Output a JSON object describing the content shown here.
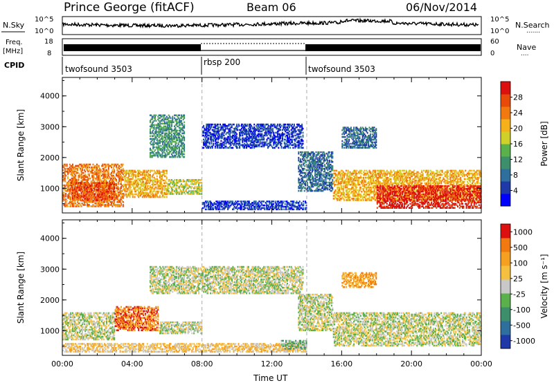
{
  "header": {
    "station": "Prince George (fitACF)",
    "beam": "Beam 06",
    "date": "06/Nov/2014"
  },
  "nsky_panel": {
    "left_label": "N.Sky",
    "right_label": "N.Search",
    "tick_top": "10^5",
    "tick_bottom": "10^0",
    "right_tick_top": "10^5",
    "right_tick_bottom": "10^0",
    "legend_right": "......."
  },
  "freq_panel": {
    "left_label_line1": "Freq.",
    "left_label_line2": "[MHz]",
    "left_ticks": [
      "18",
      "8"
    ],
    "right_label": "Nave",
    "right_ticks": [
      "60",
      "0"
    ],
    "legend_right": "...."
  },
  "cpid": {
    "label": "CPID",
    "segments": [
      {
        "name": "twofsound 3503",
        "start_h": 0,
        "end_h": 8
      },
      {
        "name": "rbsp 200",
        "start_h": 8,
        "end_h": 14
      },
      {
        "name": "twofsound 3503",
        "start_h": 14,
        "end_h": 24
      }
    ]
  },
  "chart_data": [
    {
      "type": "heatmap",
      "quantity": "Power",
      "ylabel": "Slant Range [km]",
      "yticks": [
        1000,
        2000,
        3000,
        4000
      ],
      "ylim": [
        200,
        4600
      ],
      "xlim": [
        0,
        24
      ],
      "colorbar": {
        "label": "Power [dB]",
        "ticks": [
          "4",
          "8",
          "12",
          "16",
          "20",
          "24",
          "28"
        ],
        "colors": [
          "#0000ff",
          "#1f3aa8",
          "#2e6f9e",
          "#3c8f6a",
          "#5ab04a",
          "#cfd02a",
          "#f5b01a",
          "#f07a10",
          "#e84a0a",
          "#dd1010"
        ]
      },
      "regions": [
        {
          "t0": 0.0,
          "t1": 3.5,
          "r0": 400,
          "r1": 1800,
          "level": 7
        },
        {
          "t0": 0.5,
          "t1": 3.0,
          "r0": 600,
          "r1": 1200,
          "level": 8
        },
        {
          "t0": 3.5,
          "t1": 6.0,
          "r0": 700,
          "r1": 1600,
          "level": 6
        },
        {
          "t0": 6.0,
          "t1": 8.0,
          "r0": 800,
          "r1": 1300,
          "level": 5
        },
        {
          "t0": 5.0,
          "t1": 7.0,
          "r0": 2000,
          "r1": 3400,
          "level": 3
        },
        {
          "t0": 8.0,
          "t1": 13.8,
          "r0": 2300,
          "r1": 3100,
          "level": 1
        },
        {
          "t0": 13.5,
          "t1": 15.5,
          "r0": 900,
          "r1": 2200,
          "level": 2
        },
        {
          "t0": 15.5,
          "t1": 24.0,
          "r0": 600,
          "r1": 1600,
          "level": 6
        },
        {
          "t0": 18.0,
          "t1": 24.0,
          "r0": 350,
          "r1": 1100,
          "level": 9
        },
        {
          "t0": 16.0,
          "t1": 18.0,
          "r0": 2300,
          "r1": 3000,
          "level": 2
        },
        {
          "t0": 8.0,
          "t1": 14.0,
          "r0": 300,
          "r1": 600,
          "level": 1
        }
      ]
    },
    {
      "type": "heatmap",
      "quantity": "Velocity",
      "ylabel": "Slant Range [km]",
      "xlabel": "Time UT",
      "yticks": [
        1000,
        2000,
        3000,
        4000
      ],
      "ylim": [
        200,
        4600
      ],
      "xlim": [
        0,
        24
      ],
      "xticks": [
        "00:00",
        "04:00",
        "08:00",
        "12:00",
        "16:00",
        "20:00",
        "00:00"
      ],
      "colorbar": {
        "label": "Velocity [m s⁻¹]",
        "ticks": [
          "1000",
          "500",
          "100",
          "25",
          "-25",
          "-100",
          "-500",
          "-1000"
        ],
        "colors": [
          "#1f3aa8",
          "#2e6f9e",
          "#3c8f6a",
          "#5ab04a",
          "#c8c8c8",
          "#f5c040",
          "#f5a020",
          "#f07a10",
          "#dd1010"
        ]
      },
      "regions": [
        {
          "t0": 0.0,
          "t1": 3.0,
          "r0": 700,
          "r1": 1600,
          "level": 4
        },
        {
          "t0": 3.0,
          "t1": 5.5,
          "r0": 1000,
          "r1": 1800,
          "level": 7
        },
        {
          "t0": 5.5,
          "t1": 8.0,
          "r0": 900,
          "r1": 1300,
          "level": 4
        },
        {
          "t0": 5.0,
          "t1": 13.8,
          "r0": 2200,
          "r1": 3100,
          "level": 4
        },
        {
          "t0": 0.0,
          "t1": 14.0,
          "r0": 300,
          "r1": 600,
          "level": 5
        },
        {
          "t0": 13.5,
          "t1": 15.5,
          "r0": 1000,
          "r1": 2200,
          "level": 4
        },
        {
          "t0": 15.5,
          "t1": 24.0,
          "r0": 500,
          "r1": 1600,
          "level": 4
        },
        {
          "t0": 16.0,
          "t1": 18.0,
          "r0": 2400,
          "r1": 2900,
          "level": 6
        },
        {
          "t0": 12.5,
          "t1": 14.0,
          "r0": 400,
          "r1": 700,
          "level": 3
        }
      ]
    }
  ]
}
